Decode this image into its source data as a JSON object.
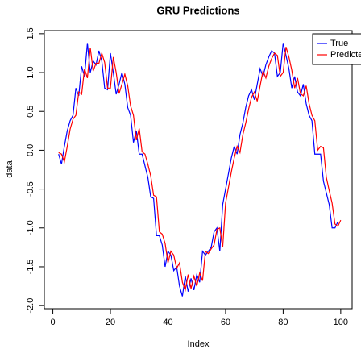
{
  "chart_data": {
    "type": "line",
    "title": "GRU Predictions",
    "x_label": "Index",
    "y_label": "data",
    "x": [
      2,
      3,
      4,
      5,
      6,
      7,
      8,
      9,
      10,
      11,
      12,
      13,
      14,
      15,
      16,
      17,
      18,
      19,
      20,
      21,
      22,
      23,
      24,
      25,
      26,
      27,
      28,
      29,
      30,
      31,
      32,
      33,
      34,
      35,
      36,
      37,
      38,
      39,
      40,
      41,
      42,
      43,
      44,
      45,
      46,
      47,
      48,
      49,
      50,
      51,
      52,
      53,
      54,
      55,
      56,
      57,
      58,
      59,
      60,
      61,
      62,
      63,
      64,
      65,
      66,
      67,
      68,
      69,
      70,
      71,
      72,
      73,
      74,
      75,
      76,
      77,
      78,
      79,
      80,
      81,
      82,
      83,
      84,
      85,
      86,
      87,
      88,
      89,
      90,
      91,
      92,
      93,
      94,
      95,
      96,
      97,
      98,
      99,
      100
    ],
    "series": [
      {
        "name": "True",
        "color": "#0000ff",
        "values": [
          -0.05,
          -0.18,
          0.05,
          0.25,
          0.38,
          0.45,
          0.8,
          0.7,
          1.08,
          0.95,
          1.38,
          1.0,
          1.15,
          1.1,
          1.28,
          1.15,
          0.8,
          0.78,
          1.25,
          1.0,
          0.72,
          0.85,
          1.0,
          0.85,
          0.55,
          0.45,
          0.1,
          0.25,
          -0.05,
          -0.05,
          -0.2,
          -0.35,
          -0.6,
          -0.62,
          -1.1,
          -1.1,
          -1.22,
          -1.5,
          -1.3,
          -1.35,
          -1.55,
          -1.5,
          -1.75,
          -1.88,
          -1.62,
          -1.82,
          -1.65,
          -1.8,
          -1.6,
          -1.7,
          -1.3,
          -1.35,
          -1.3,
          -1.25,
          -1.05,
          -1.0,
          -1.3,
          -0.7,
          -0.5,
          -0.3,
          -0.1,
          0.05,
          -0.05,
          0.2,
          0.35,
          0.55,
          0.7,
          0.78,
          0.65,
          0.85,
          1.05,
          0.95,
          1.1,
          1.2,
          1.28,
          1.25,
          0.95,
          1.0,
          1.38,
          1.22,
          1.05,
          0.8,
          0.95,
          0.75,
          0.7,
          0.85,
          0.6,
          0.45,
          0.38,
          -0.05,
          -0.05,
          -0.05,
          -0.4,
          -0.55,
          -0.7,
          -1.0,
          -1.0,
          -0.92,
          null
        ]
      },
      {
        "name": "Predicted",
        "color": "#ff0000",
        "values": [
          -0.03,
          -0.05,
          -0.15,
          0.05,
          0.27,
          0.4,
          0.45,
          0.75,
          0.72,
          1.05,
          0.93,
          1.32,
          1.02,
          1.12,
          1.12,
          1.25,
          1.13,
          0.8,
          0.8,
          1.2,
          1.0,
          0.73,
          0.85,
          0.98,
          0.83,
          0.57,
          0.45,
          0.13,
          0.28,
          -0.02,
          -0.05,
          -0.18,
          -0.33,
          -0.58,
          -0.6,
          -1.05,
          -1.08,
          -1.2,
          -1.45,
          -1.3,
          -1.35,
          -1.52,
          -1.45,
          -1.7,
          -1.8,
          -1.6,
          -1.78,
          -1.62,
          -1.75,
          -1.58,
          -1.68,
          -1.3,
          -1.33,
          -1.27,
          -1.22,
          -1.02,
          -1.0,
          -1.25,
          -0.68,
          -0.48,
          -0.28,
          -0.1,
          0.05,
          -0.03,
          0.2,
          0.35,
          0.53,
          0.68,
          0.75,
          0.63,
          0.83,
          1.02,
          0.93,
          1.08,
          1.18,
          1.25,
          1.22,
          0.95,
          1.0,
          1.33,
          1.2,
          1.03,
          0.8,
          0.93,
          0.73,
          0.7,
          0.83,
          0.6,
          0.45,
          0.38,
          0.0,
          0.05,
          0.03,
          -0.35,
          -0.52,
          -0.68,
          -0.95,
          -0.98,
          -0.9
        ]
      }
    ],
    "xlim": [
      -2.96,
      103.96
    ],
    "xticks": [
      0,
      20,
      40,
      60,
      80,
      100
    ],
    "ylim": [
      -2.04,
      1.54
    ],
    "yticks": [
      {
        "value": -2,
        "label": "-2.0"
      },
      -1.5,
      {
        "value": -1,
        "label": "-1.0"
      },
      -0.5,
      {
        "value": 0,
        "label": "0.0"
      },
      0.5,
      {
        "value": 1,
        "label": "1.0"
      },
      1.5
    ],
    "legend": "top-right"
  }
}
